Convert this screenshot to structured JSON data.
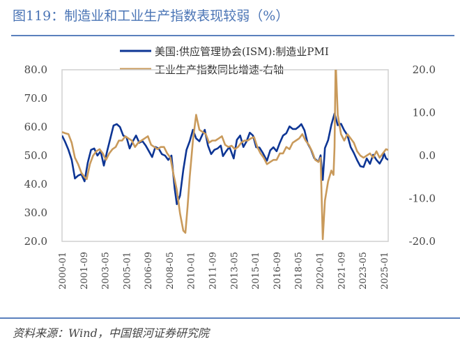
{
  "title": "图119：制造业和工业生产指数表现较弱（%）",
  "source": "资料来源：Wind，中国银河证券研究院",
  "colors": {
    "title": "#4a74b5",
    "pmi": "#0d3594",
    "ip": "#c99a5b",
    "axis": "#d0d0d0"
  },
  "chart_data": {
    "type": "line",
    "title": "",
    "legend_position": "top",
    "grid": false,
    "x_tick_labels": [
      "2000-01",
      "2001-09",
      "2003-05",
      "2005-01",
      "2006-09",
      "2008-05",
      "2010-01",
      "2011-09",
      "2013-05",
      "2015-01",
      "2016-09",
      "2018-05",
      "2020-01",
      "2021-09",
      "2023-05",
      "2025-01"
    ],
    "xlim": [
      "2000-01",
      "2025-05"
    ],
    "y_left": {
      "lim": [
        20,
        80
      ],
      "ticks": [
        "20.0",
        "30.0",
        "40.0",
        "50.0",
        "60.0",
        "70.0",
        "80.0"
      ]
    },
    "y_right": {
      "lim": [
        -20,
        20
      ],
      "ticks": [
        "-20.0",
        "-10.0",
        "0.0",
        "10.0",
        "20.0"
      ]
    },
    "series": [
      {
        "name": "美国:供应管理协会(ISM):制造业PMI",
        "axis": "left",
        "color": "#0d3594",
        "points": [
          [
            "2000-01",
            57
          ],
          [
            "2000-04",
            54.7
          ],
          [
            "2000-07",
            52
          ],
          [
            "2000-10",
            48.5
          ],
          [
            "2001-01",
            42
          ],
          [
            "2001-04",
            43
          ],
          [
            "2001-07",
            43.5
          ],
          [
            "2001-10",
            41
          ],
          [
            "2002-01",
            47.5
          ],
          [
            "2002-04",
            52
          ],
          [
            "2002-07",
            52.5
          ],
          [
            "2002-10",
            50
          ],
          [
            "2003-01",
            51.5
          ],
          [
            "2003-04",
            46.5
          ],
          [
            "2003-07",
            51.5
          ],
          [
            "2003-10",
            56
          ],
          [
            "2004-01",
            60.5
          ],
          [
            "2004-04",
            61
          ],
          [
            "2004-07",
            60
          ],
          [
            "2004-10",
            57
          ],
          [
            "2005-01",
            56.5
          ],
          [
            "2005-04",
            52.5
          ],
          [
            "2005-07",
            55
          ],
          [
            "2005-10",
            57
          ],
          [
            "2006-01",
            54.5
          ],
          [
            "2006-04",
            55
          ],
          [
            "2006-07",
            53.5
          ],
          [
            "2006-10",
            51.5
          ],
          [
            "2007-01",
            49.5
          ],
          [
            "2007-04",
            53
          ],
          [
            "2007-07",
            52.5
          ],
          [
            "2007-10",
            50.5
          ],
          [
            "2008-01",
            50
          ],
          [
            "2008-04",
            48.5
          ],
          [
            "2008-07",
            50
          ],
          [
            "2008-10",
            38.5
          ],
          [
            "2008-12",
            33
          ],
          [
            "2009-03",
            36
          ],
          [
            "2009-06",
            45
          ],
          [
            "2009-09",
            52
          ],
          [
            "2009-12",
            55
          ],
          [
            "2010-03",
            59
          ],
          [
            "2010-06",
            56
          ],
          [
            "2010-09",
            55
          ],
          [
            "2010-12",
            57.5
          ],
          [
            "2011-02",
            59
          ],
          [
            "2011-05",
            53.5
          ],
          [
            "2011-08",
            50.5
          ],
          [
            "2011-11",
            52
          ],
          [
            "2012-02",
            52.5
          ],
          [
            "2012-05",
            53.5
          ],
          [
            "2012-07",
            49.8
          ],
          [
            "2012-10",
            51.5
          ],
          [
            "2013-01",
            53
          ],
          [
            "2013-05",
            49
          ],
          [
            "2013-08",
            55.5
          ],
          [
            "2013-11",
            57
          ],
          [
            "2014-02",
            53
          ],
          [
            "2014-05",
            55
          ],
          [
            "2014-08",
            58
          ],
          [
            "2014-11",
            57
          ],
          [
            "2015-02",
            52.9
          ],
          [
            "2015-05",
            52.8
          ],
          [
            "2015-08",
            51
          ],
          [
            "2015-12",
            48.2
          ],
          [
            "2016-03",
            51.8
          ],
          [
            "2016-06",
            52.9
          ],
          [
            "2016-09",
            51.5
          ],
          [
            "2016-12",
            54.5
          ],
          [
            "2017-03",
            57
          ],
          [
            "2017-06",
            57.8
          ],
          [
            "2017-09",
            60.2
          ],
          [
            "2017-12",
            59.3
          ],
          [
            "2018-03",
            59.3
          ],
          [
            "2018-06",
            60.2
          ],
          [
            "2018-08",
            61
          ],
          [
            "2018-11",
            58.8
          ],
          [
            "2019-02",
            54.2
          ],
          [
            "2019-05",
            52.1
          ],
          [
            "2019-08",
            49.1
          ],
          [
            "2019-12",
            47.8
          ],
          [
            "2020-02",
            50.1
          ],
          [
            "2020-04",
            41.5
          ],
          [
            "2020-06",
            52.6
          ],
          [
            "2020-09",
            55.4
          ],
          [
            "2020-12",
            60.7
          ],
          [
            "2021-03",
            64.7
          ],
          [
            "2021-06",
            60.6
          ],
          [
            "2021-09",
            61.1
          ],
          [
            "2021-12",
            58.8
          ],
          [
            "2022-03",
            57.1
          ],
          [
            "2022-06",
            53
          ],
          [
            "2022-09",
            50.9
          ],
          [
            "2022-12",
            48.4
          ],
          [
            "2023-03",
            46.3
          ],
          [
            "2023-06",
            46
          ],
          [
            "2023-09",
            49
          ],
          [
            "2023-12",
            47.1
          ],
          [
            "2024-03",
            50.3
          ],
          [
            "2024-06",
            48.5
          ],
          [
            "2024-09",
            47.2
          ],
          [
            "2024-12",
            49.2
          ],
          [
            "2025-01",
            50.9
          ],
          [
            "2025-03",
            49
          ],
          [
            "2025-05",
            48.5
          ]
        ]
      },
      {
        "name": "工业生产指数同比增速-右轴",
        "axis": "right",
        "color": "#c99a5b",
        "points": [
          [
            "2000-01",
            5.5
          ],
          [
            "2000-04",
            5.2
          ],
          [
            "2000-07",
            5
          ],
          [
            "2000-10",
            3
          ],
          [
            "2001-01",
            -0.5
          ],
          [
            "2001-04",
            -2
          ],
          [
            "2001-07",
            -4
          ],
          [
            "2001-10",
            -5
          ],
          [
            "2001-12",
            -5.5
          ],
          [
            "2002-03",
            -2
          ],
          [
            "2002-06",
            0
          ],
          [
            "2002-09",
            1
          ],
          [
            "2002-12",
            1.5
          ],
          [
            "2003-03",
            0.5
          ],
          [
            "2003-06",
            -1
          ],
          [
            "2003-09",
            0.5
          ],
          [
            "2003-12",
            1.5
          ],
          [
            "2004-03",
            2
          ],
          [
            "2004-06",
            3.5
          ],
          [
            "2004-09",
            3.5
          ],
          [
            "2004-12",
            4.5
          ],
          [
            "2005-03",
            4
          ],
          [
            "2005-06",
            3.5
          ],
          [
            "2005-09",
            2
          ],
          [
            "2005-12",
            3
          ],
          [
            "2006-03",
            3.5
          ],
          [
            "2006-06",
            4
          ],
          [
            "2006-09",
            4.5
          ],
          [
            "2006-12",
            2.5
          ],
          [
            "2007-03",
            2
          ],
          [
            "2007-06",
            1.5
          ],
          [
            "2007-09",
            2
          ],
          [
            "2007-12",
            2
          ],
          [
            "2008-03",
            0.5
          ],
          [
            "2008-06",
            -0.5
          ],
          [
            "2008-09",
            -4.5
          ],
          [
            "2008-12",
            -8
          ],
          [
            "2009-03",
            -13.5
          ],
          [
            "2009-06",
            -17.5
          ],
          [
            "2009-08",
            -18
          ],
          [
            "2009-10",
            -12
          ],
          [
            "2009-12",
            -5
          ],
          [
            "2010-03",
            3.5
          ],
          [
            "2010-06",
            9.5
          ],
          [
            "2010-09",
            6
          ],
          [
            "2010-12",
            5.5
          ],
          [
            "2011-03",
            5
          ],
          [
            "2011-06",
            3
          ],
          [
            "2011-09",
            3.5
          ],
          [
            "2011-12",
            3.5
          ],
          [
            "2012-03",
            4
          ],
          [
            "2012-06",
            4.5
          ],
          [
            "2012-09",
            2.5
          ],
          [
            "2012-12",
            2
          ],
          [
            "2013-03",
            2.3
          ],
          [
            "2013-06",
            1.5
          ],
          [
            "2013-09",
            2
          ],
          [
            "2013-12",
            3
          ],
          [
            "2014-03",
            3.5
          ],
          [
            "2014-06",
            3.5
          ],
          [
            "2014-09",
            4
          ],
          [
            "2014-12",
            4.3
          ],
          [
            "2015-03",
            2
          ],
          [
            "2015-06",
            0.5
          ],
          [
            "2015-09",
            -0.5
          ],
          [
            "2015-12",
            -2
          ],
          [
            "2016-03",
            -1.5
          ],
          [
            "2016-06",
            -1
          ],
          [
            "2016-09",
            -1
          ],
          [
            "2016-12",
            0.5
          ],
          [
            "2017-03",
            0.5
          ],
          [
            "2017-06",
            2
          ],
          [
            "2017-09",
            1.5
          ],
          [
            "2017-12",
            3
          ],
          [
            "2018-03",
            3.5
          ],
          [
            "2018-06",
            4
          ],
          [
            "2018-09",
            5
          ],
          [
            "2018-12",
            3.5
          ],
          [
            "2019-03",
            2.5
          ],
          [
            "2019-06",
            1
          ],
          [
            "2019-09",
            -1
          ],
          [
            "2019-12",
            -1.5
          ],
          [
            "2020-02",
            -0.5
          ],
          [
            "2020-04",
            -19.5
          ],
          [
            "2020-06",
            -10.5
          ],
          [
            "2020-09",
            -6
          ],
          [
            "2020-12",
            -3.5
          ],
          [
            "2021-02",
            -4.5
          ],
          [
            "2021-03",
            2
          ],
          [
            "2021-04",
            22
          ],
          [
            "2021-06",
            9.5
          ],
          [
            "2021-09",
            5
          ],
          [
            "2021-12",
            3.5
          ],
          [
            "2022-03",
            5
          ],
          [
            "2022-06",
            4
          ],
          [
            "2022-09",
            3
          ],
          [
            "2022-12",
            1
          ],
          [
            "2023-03",
            0
          ],
          [
            "2023-06",
            -0.5
          ],
          [
            "2023-09",
            0
          ],
          [
            "2023-12",
            0.5
          ],
          [
            "2024-03",
            -0.5
          ],
          [
            "2024-06",
            1
          ],
          [
            "2024-09",
            -0.5
          ],
          [
            "2024-12",
            0.5
          ],
          [
            "2025-03",
            1.5
          ],
          [
            "2025-05",
            1.3
          ]
        ]
      }
    ]
  }
}
